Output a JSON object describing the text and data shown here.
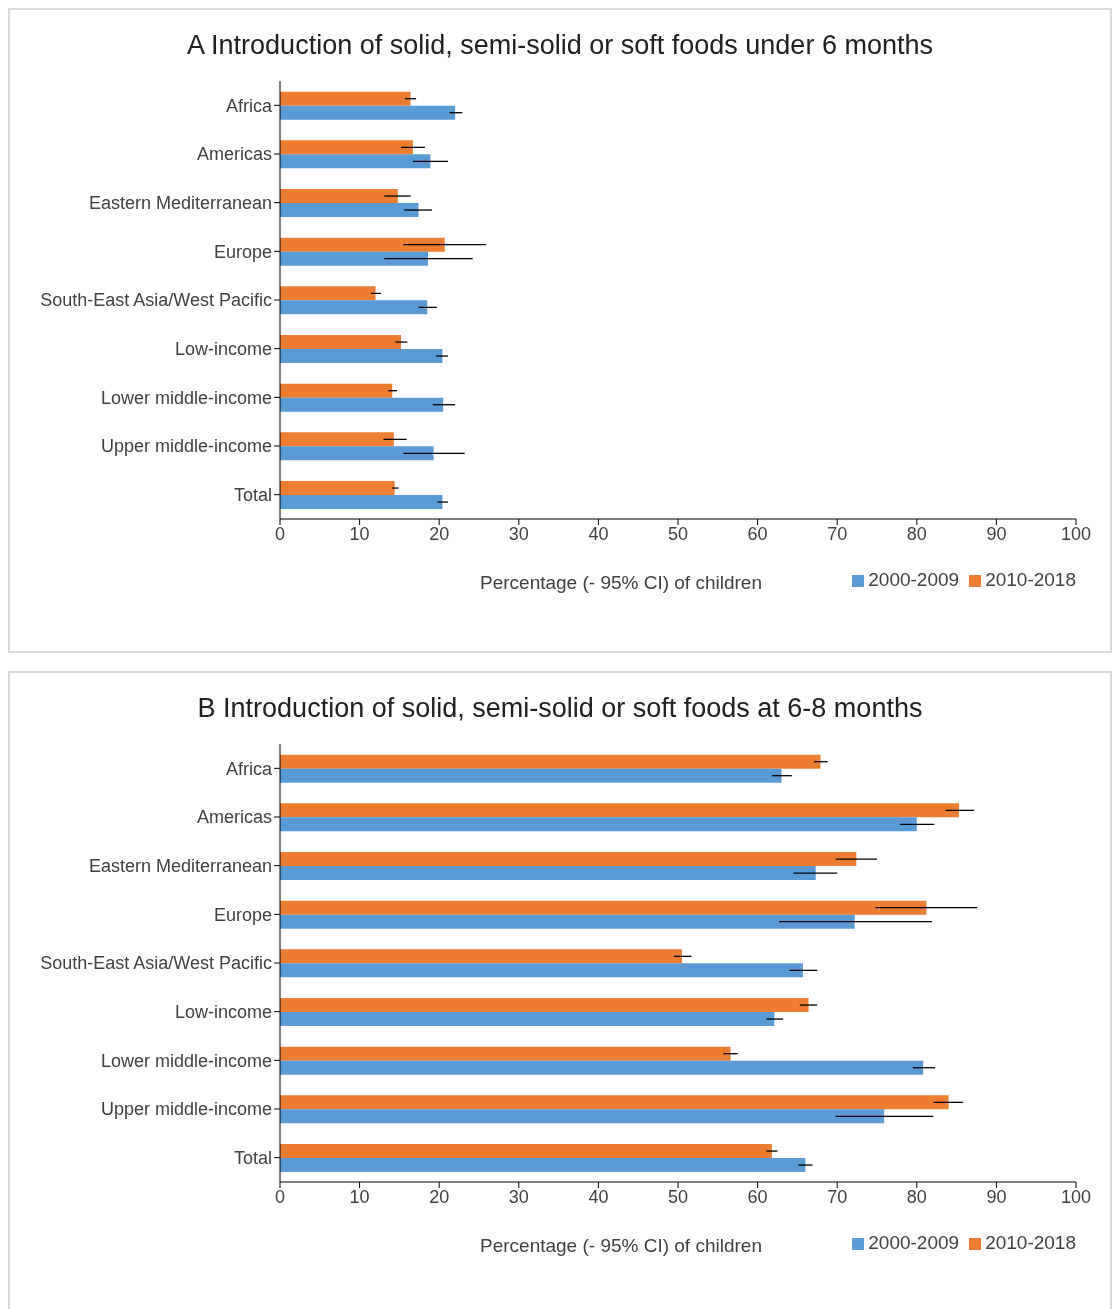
{
  "chart_data": [
    {
      "type": "bar",
      "orientation": "horizontal",
      "title": "A  Introduction of solid, semi-solid or soft foods under 6 months",
      "xlabel": "Percentage (- 95% CI) of children",
      "categories": [
        "Africa",
        "Americas",
        "Eastern Mediterranean",
        "Europe",
        "South-East Asia/West Pacific",
        "Low-income",
        "Lower middle-income",
        "Upper middle-income",
        "Total"
      ],
      "series": [
        {
          "name": "2010-2018",
          "color": "#ed7d31",
          "values": [
            16.4,
            16.7,
            14.8,
            20.7,
            12.0,
            15.2,
            14.1,
            14.3,
            14.4
          ],
          "errors": [
            [
              15.7,
              17.1
            ],
            [
              15.2,
              18.2
            ],
            [
              13.1,
              16.4
            ],
            [
              15.5,
              25.9
            ],
            [
              11.4,
              12.7
            ],
            [
              14.5,
              16.0
            ],
            [
              13.6,
              14.7
            ],
            [
              13.0,
              15.9
            ],
            [
              14.1,
              14.9
            ]
          ]
        },
        {
          "name": "2000-2009",
          "color": "#5b9bd5",
          "values": [
            22.0,
            18.9,
            17.4,
            18.6,
            18.5,
            20.4,
            20.5,
            19.3,
            20.4
          ],
          "errors": [
            [
              21.3,
              22.9
            ],
            [
              16.7,
              21.1
            ],
            [
              15.6,
              19.1
            ],
            [
              13.1,
              24.2
            ],
            [
              17.4,
              19.7
            ],
            [
              19.6,
              21.1
            ],
            [
              19.2,
              22.0
            ],
            [
              15.5,
              23.2
            ],
            [
              19.8,
              21.1
            ]
          ]
        }
      ],
      "xlim": [
        0,
        100
      ],
      "xticks": [
        0,
        10,
        20,
        30,
        40,
        50,
        60,
        70,
        80,
        90,
        100
      ],
      "grid": false,
      "legend": "bottom right"
    },
    {
      "type": "bar",
      "orientation": "horizontal",
      "title": "B  Introduction of solid, semi-solid or soft foods at 6-8 months",
      "xlabel": "Percentage (- 95% CI) of children",
      "categories": [
        "Africa",
        "Americas",
        "Eastern Mediterranean",
        "Europe",
        "South-East Asia/West Pacific",
        "Low-income",
        "Lower middle-income",
        "Upper middle-income",
        "Total"
      ],
      "series": [
        {
          "name": "2010-2018",
          "color": "#ed7d31",
          "values": [
            67.9,
            85.3,
            72.4,
            81.2,
            50.5,
            66.4,
            56.6,
            84.0,
            61.8
          ],
          "errors": [
            [
              67.1,
              68.8
            ],
            [
              83.6,
              87.2
            ],
            [
              69.8,
              75.0
            ],
            [
              74.8,
              87.6
            ],
            [
              49.5,
              51.7
            ],
            [
              65.3,
              67.5
            ],
            [
              55.7,
              57.5
            ],
            [
              82.1,
              85.8
            ],
            [
              61.1,
              62.5
            ]
          ]
        },
        {
          "name": "2000-2009",
          "color": "#5b9bd5",
          "values": [
            63.0,
            80.0,
            67.3,
            72.2,
            65.7,
            62.1,
            80.8,
            75.9,
            66.0
          ],
          "errors": [
            [
              61.8,
              64.3
            ],
            [
              77.9,
              82.2
            ],
            [
              64.5,
              70.0
            ],
            [
              62.7,
              81.9
            ],
            [
              64.0,
              67.5
            ],
            [
              61.1,
              63.2
            ],
            [
              79.5,
              82.3
            ],
            [
              69.8,
              82.1
            ],
            [
              65.1,
              66.9
            ]
          ]
        }
      ],
      "xlim": [
        0,
        100
      ],
      "xticks": [
        0,
        10,
        20,
        30,
        40,
        50,
        60,
        70,
        80,
        90,
        100
      ],
      "grid": false,
      "legend": "bottom right"
    }
  ]
}
